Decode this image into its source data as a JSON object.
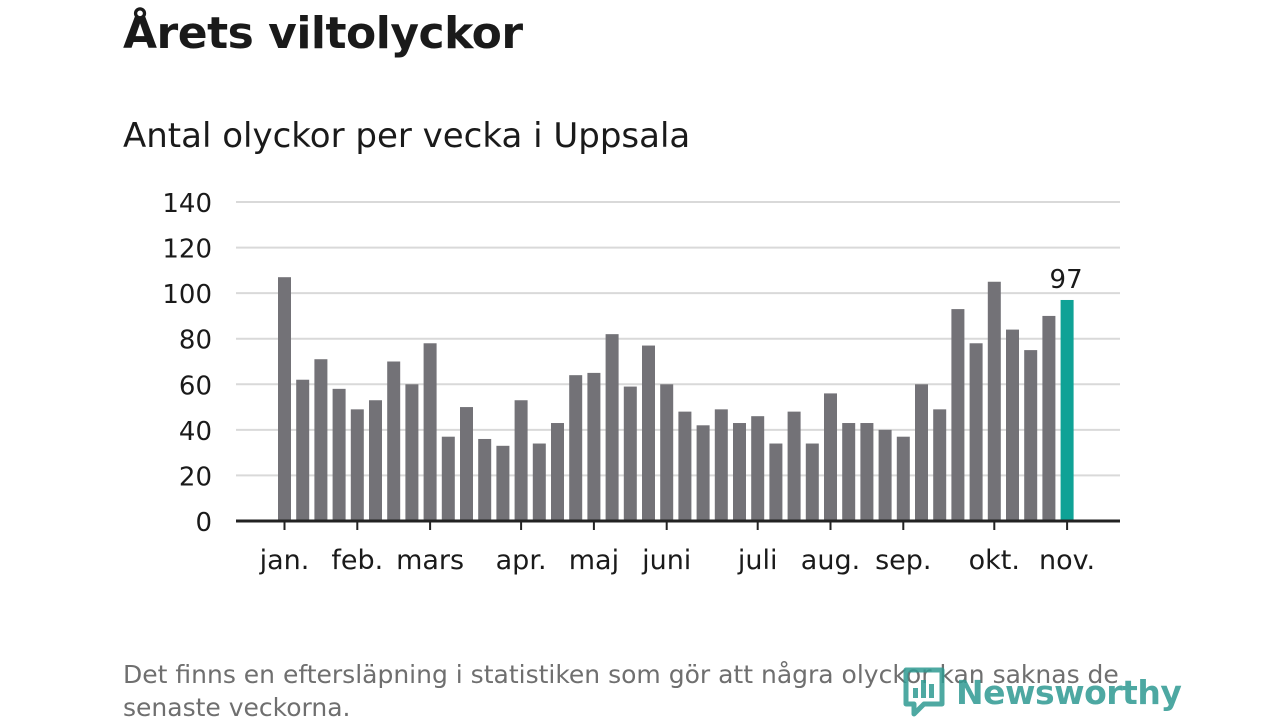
{
  "header": {
    "title": "Årets viltolyckor",
    "subtitle": "Antal olyckor per vecka i Uppsala"
  },
  "footnote": "Det finns en eftersläpning i statistiken som gör att några olyckor kan saknas de senaste veckorna.",
  "brand": {
    "name": "Newsworthy",
    "icon": "newsworthy-logo-icon"
  },
  "colors": {
    "bar": "#737277",
    "highlight": "#0fa296",
    "grid": "#d9d9d9",
    "axis": "#222222",
    "brand": "#2f9a92"
  },
  "chart_data": {
    "type": "bar",
    "title": "Årets viltolyckor",
    "subtitle": "Antal olyckor per vecka i Uppsala",
    "xlabel": "",
    "ylabel": "",
    "ylim": [
      0,
      140
    ],
    "yticks": [
      0,
      20,
      40,
      60,
      80,
      100,
      120,
      140
    ],
    "grid": true,
    "values": [
      107,
      62,
      71,
      58,
      49,
      53,
      70,
      60,
      78,
      37,
      50,
      36,
      33,
      53,
      34,
      43,
      64,
      65,
      82,
      59,
      77,
      60,
      48,
      42,
      49,
      43,
      46,
      34,
      48,
      34,
      56,
      43,
      43,
      40,
      37,
      60,
      49,
      93,
      78,
      105,
      84,
      75,
      90,
      97
    ],
    "highlight_index": 43,
    "highlight_label": "97",
    "month_labels": [
      {
        "label": "jan.",
        "bar": 0
      },
      {
        "label": "feb.",
        "bar": 4
      },
      {
        "label": "mars",
        "bar": 8
      },
      {
        "label": "apr.",
        "bar": 13
      },
      {
        "label": "maj",
        "bar": 17
      },
      {
        "label": "juni",
        "bar": 21
      },
      {
        "label": "juli",
        "bar": 26
      },
      {
        "label": "aug.",
        "bar": 30
      },
      {
        "label": "sep.",
        "bar": 34
      },
      {
        "label": "okt.",
        "bar": 39
      },
      {
        "label": "nov.",
        "bar": 43
      }
    ]
  }
}
